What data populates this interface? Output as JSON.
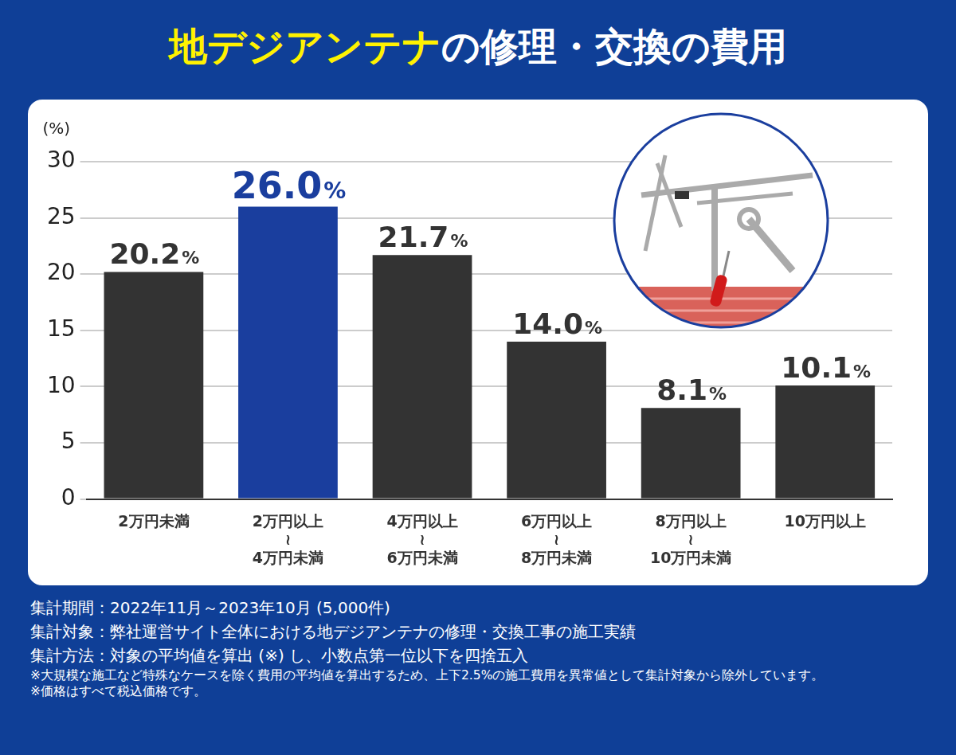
{
  "chart_data": {
    "type": "bar",
    "title": "地デジアンテナの修理・交換の費用",
    "y_label": "(%)",
    "categories": [
      "2万円未満",
      [
        "2万円以上",
        "≀",
        "4万円未満"
      ],
      [
        "4万円以上",
        "≀",
        "6万円未満"
      ],
      [
        "6万円以上",
        "≀",
        "8万円未満"
      ],
      [
        "8万円以上",
        "≀",
        "10万円未満"
      ],
      "10万円以上"
    ],
    "values": [
      20.2,
      26.0,
      21.7,
      14.0,
      8.1,
      10.1
    ],
    "value_labels": [
      "20.2%",
      "26.0%",
      "21.7%",
      "14.0%",
      "8.1%",
      "10.1%"
    ],
    "colors": [
      "#333333",
      "#1a3e9e",
      "#333333",
      "#333333",
      "#333333",
      "#333333"
    ],
    "ylim": [
      0,
      30
    ],
    "yticks": [
      0,
      5,
      10,
      15,
      20,
      25,
      30
    ],
    "grid": true,
    "data_labels": true
  },
  "notes": [
    "集計期間：2022年11月～2023年10月 (5,000件)",
    "集計対象：弊社運営サイト全体における地デジアンテナの修理・交換工事の施工実績",
    "集計方法：対象の平均値を算出 (※) し、小数点第一位以下を四捨五入",
    "※大規模な施工など特殊なケースを除く費用の平均値を算出するため、上下2.5%の施工費用を異常値として集計対象から除外しています。",
    "※価格はすべて税込価格です。"
  ]
}
